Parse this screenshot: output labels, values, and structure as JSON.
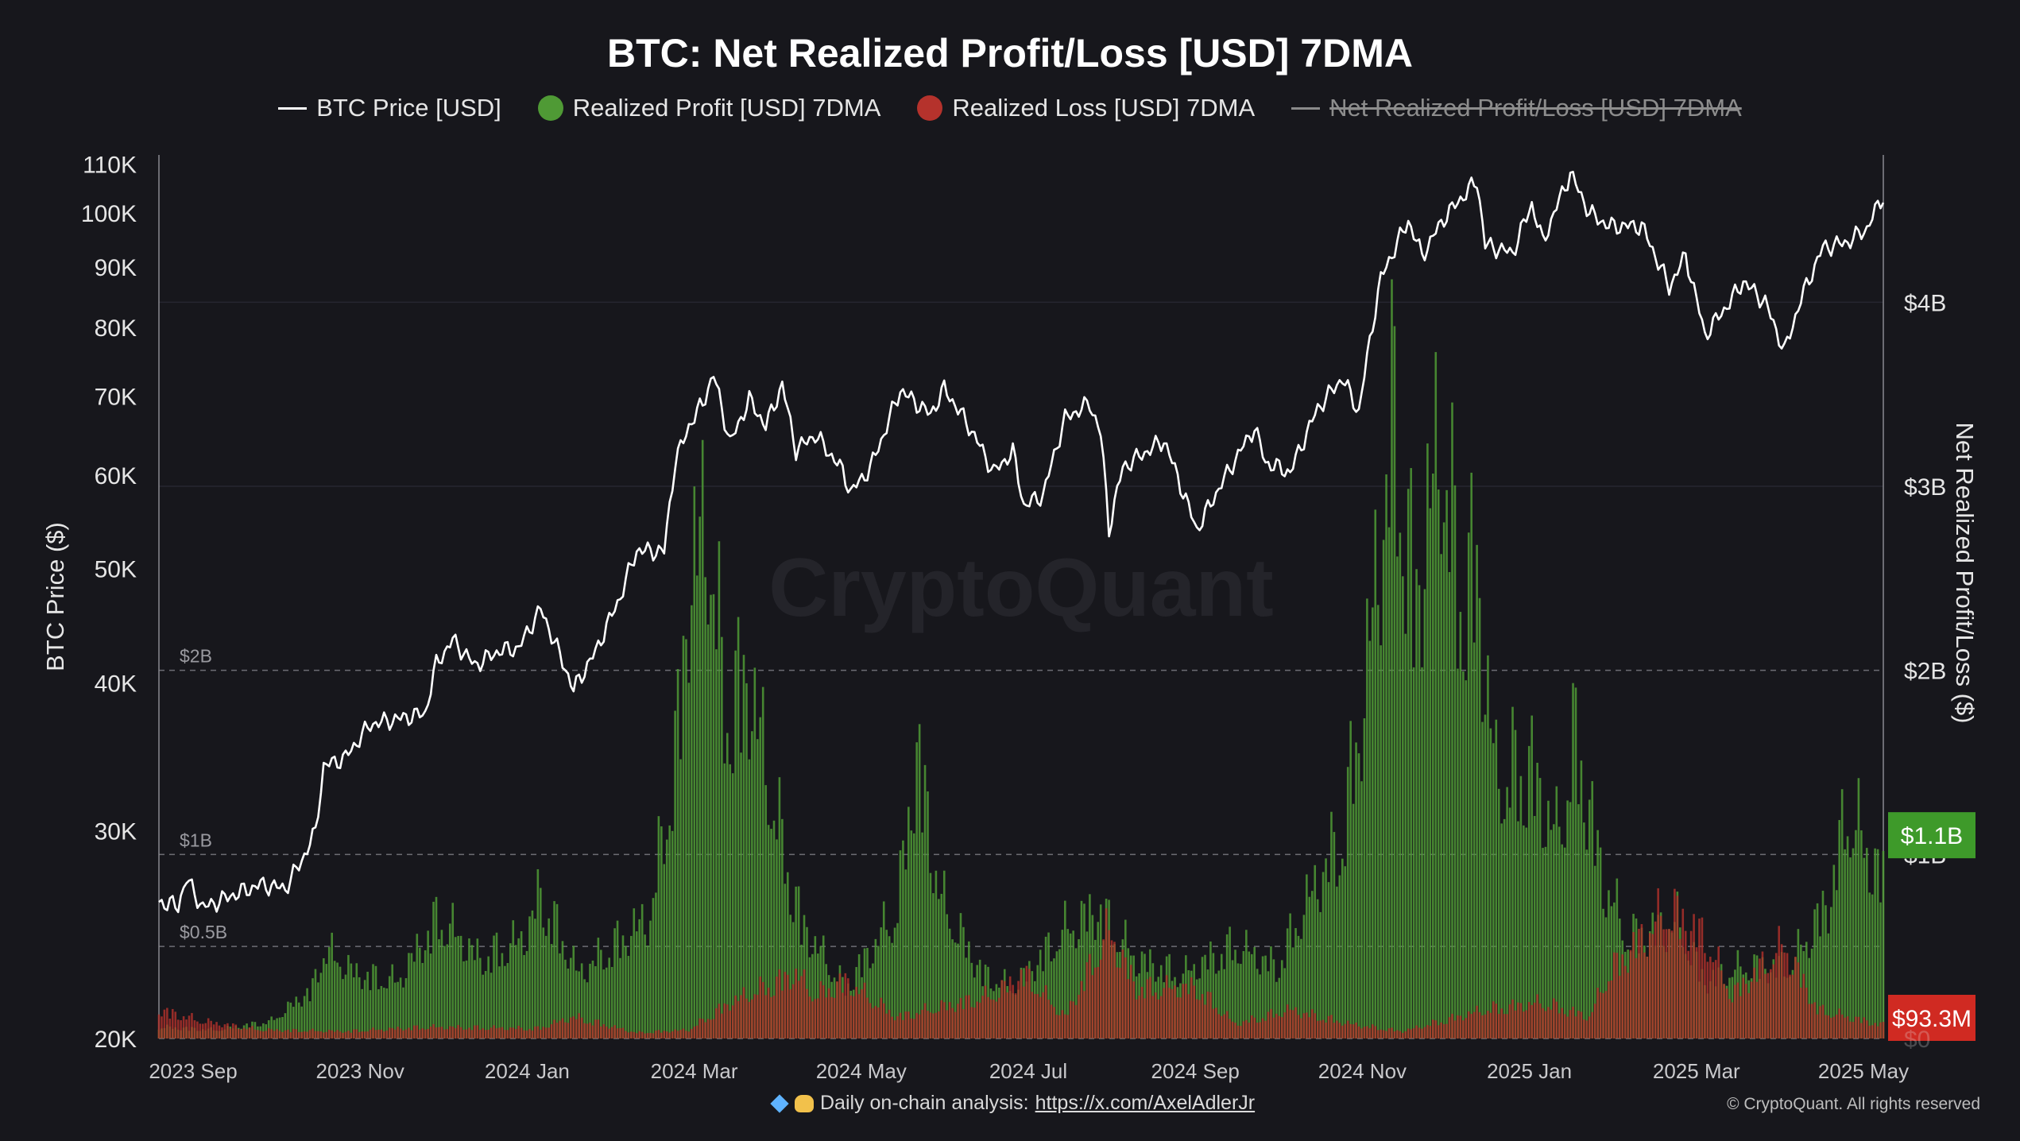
{
  "title": "BTC: Net Realized Profit/Loss [USD] 7DMA",
  "legend": [
    {
      "label": "BTC Price [USD]",
      "marker": "line",
      "color": "#ffffff",
      "struck": false
    },
    {
      "label": "Realized Profit [USD] 7DMA",
      "marker": "dot",
      "color": "#4f9a35",
      "struck": false
    },
    {
      "label": "Realized Loss [USD] 7DMA",
      "marker": "dot",
      "color": "#b5322c",
      "struck": false
    },
    {
      "label": "Net Realized Profit/Loss [USD] 7DMA",
      "marker": "line",
      "color": "#8a8a8a",
      "struck": true
    }
  ],
  "watermark": "CryptoQuant",
  "footer": {
    "emoji": [
      "diamond-icon",
      "raised-hands-icon"
    ],
    "text": "Daily on-chain analysis:",
    "link": "https://x.com/AxelAdlerJr",
    "copyright": "© CryptoQuant. All rights reserved"
  },
  "chart_data": {
    "type": "bar",
    "xlabel": "",
    "x_ticks": [
      "2023 Sep",
      "2023 Nov",
      "2024 Jan",
      "2024 Mar",
      "2024 May",
      "2024 Jul",
      "2024 Sep",
      "2024 Nov",
      "2025 Jan",
      "2025 Mar",
      "2025 May"
    ],
    "x_range": [
      "2023-08-25",
      "2025-05-14"
    ],
    "left_axis": {
      "label": "BTC Price ($)",
      "scale": "log",
      "range": [
        20000,
        112000
      ],
      "ticks": [
        20000,
        30000,
        40000,
        50000,
        60000,
        70000,
        80000,
        90000,
        100000,
        110000
      ],
      "tick_labels": [
        "20K",
        "30K",
        "40K",
        "50K",
        "60K",
        "70K",
        "80K",
        "90K",
        "100K",
        "110K"
      ]
    },
    "right_axis": {
      "label": "Net Realized Profit/Loss ($)",
      "range": [
        0,
        4.8
      ],
      "unit": "B USD",
      "ticks": [
        0,
        1,
        2,
        3,
        4
      ],
      "tick_labels": [
        "$0",
        "$1B",
        "$2B",
        "$3B",
        "$4B"
      ],
      "inner_labels": [
        {
          "value": 2,
          "label": "$2B"
        },
        {
          "value": 1,
          "label": "$1B"
        },
        {
          "value": 0.5,
          "label": "$0.5B"
        }
      ]
    },
    "grid": {
      "horizontal": true,
      "dashed_levels": [
        0,
        0.5,
        1,
        2
      ],
      "solid_levels": [
        3,
        4
      ]
    },
    "current_labels": [
      {
        "series": "Realized Profit [USD] 7DMA",
        "text": "$1.1B",
        "value": 1.1,
        "color": "#3e9a2a"
      },
      {
        "series": "Realized Loss [USD] 7DMA",
        "text": "$93.3M",
        "value": 0.0933,
        "color": "#d02a22"
      }
    ],
    "series": [
      {
        "name": "BTC Price [USD]",
        "axis": "left",
        "kind": "line",
        "color": "#ffffff",
        "points": [
          [
            "2023-08-25",
            26100
          ],
          [
            "2023-09-01",
            25900
          ],
          [
            "2023-09-04",
            27300
          ],
          [
            "2023-09-10",
            25800
          ],
          [
            "2023-09-20",
            26400
          ],
          [
            "2023-10-01",
            27000
          ],
          [
            "2023-10-10",
            26800
          ],
          [
            "2023-10-16",
            28300
          ],
          [
            "2023-10-21",
            29900
          ],
          [
            "2023-10-24",
            34000
          ],
          [
            "2023-11-01",
            34600
          ],
          [
            "2023-11-10",
            36900
          ],
          [
            "2023-11-20",
            37300
          ],
          [
            "2023-11-30",
            37700
          ],
          [
            "2023-12-04",
            41500
          ],
          [
            "2023-12-10",
            43500
          ],
          [
            "2023-12-18",
            41400
          ],
          [
            "2023-12-27",
            42600
          ],
          [
            "2024-01-03",
            42800
          ],
          [
            "2024-01-11",
            46200
          ],
          [
            "2024-01-17",
            42800
          ],
          [
            "2024-01-23",
            39500
          ],
          [
            "2024-01-31",
            42500
          ],
          [
            "2024-02-09",
            47300
          ],
          [
            "2024-02-15",
            51800
          ],
          [
            "2024-02-25",
            51700
          ],
          [
            "2024-02-29",
            61500
          ],
          [
            "2024-03-05",
            66000
          ],
          [
            "2024-03-10",
            69000
          ],
          [
            "2024-03-14",
            73000
          ],
          [
            "2024-03-20",
            63800
          ],
          [
            "2024-03-27",
            69500
          ],
          [
            "2024-04-02",
            66000
          ],
          [
            "2024-04-08",
            71500
          ],
          [
            "2024-04-13",
            63000
          ],
          [
            "2024-04-20",
            64900
          ],
          [
            "2024-04-30",
            60500
          ],
          [
            "2024-05-03",
            58000
          ],
          [
            "2024-05-10",
            60800
          ],
          [
            "2024-05-15",
            65000
          ],
          [
            "2024-05-21",
            70800
          ],
          [
            "2024-06-01",
            67500
          ],
          [
            "2024-06-06",
            71000
          ],
          [
            "2024-06-15",
            66000
          ],
          [
            "2024-06-24",
            60300
          ],
          [
            "2024-07-01",
            62800
          ],
          [
            "2024-07-05",
            56500
          ],
          [
            "2024-07-12",
            57700
          ],
          [
            "2024-07-20",
            67000
          ],
          [
            "2024-07-29",
            69000
          ],
          [
            "2024-08-02",
            65000
          ],
          [
            "2024-08-05",
            54000
          ],
          [
            "2024-08-10",
            60900
          ],
          [
            "2024-08-25",
            64200
          ],
          [
            "2024-09-01",
            58000
          ],
          [
            "2024-09-06",
            53900
          ],
          [
            "2024-09-15",
            59000
          ],
          [
            "2024-09-27",
            65800
          ],
          [
            "2024-10-01",
            61500
          ],
          [
            "2024-10-10",
            60300
          ],
          [
            "2024-10-20",
            68300
          ],
          [
            "2024-10-29",
            72500
          ],
          [
            "2024-11-04",
            67800
          ],
          [
            "2024-11-12",
            88000
          ],
          [
            "2024-11-22",
            98500
          ],
          [
            "2024-11-27",
            92000
          ],
          [
            "2024-12-05",
            99000
          ],
          [
            "2024-12-17",
            106500
          ],
          [
            "2024-12-20",
            94000
          ],
          [
            "2024-12-30",
            92500
          ],
          [
            "2025-01-06",
            101800
          ],
          [
            "2025-01-10",
            94400
          ],
          [
            "2025-01-20",
            108000
          ],
          [
            "2025-01-27",
            100000
          ],
          [
            "2025-02-03",
            97500
          ],
          [
            "2025-02-15",
            97500
          ],
          [
            "2025-02-25",
            86500
          ],
          [
            "2025-03-03",
            92000
          ],
          [
            "2025-03-10",
            78800
          ],
          [
            "2025-03-19",
            84000
          ],
          [
            "2025-03-24",
            87500
          ],
          [
            "2025-04-01",
            84000
          ],
          [
            "2025-04-08",
            76300
          ],
          [
            "2025-04-14",
            84500
          ],
          [
            "2025-04-22",
            93500
          ],
          [
            "2025-05-01",
            94500
          ],
          [
            "2025-05-08",
            97000
          ],
          [
            "2025-05-14",
            103500
          ]
        ]
      },
      {
        "name": "Realized Profit [USD] 7DMA",
        "axis": "right",
        "kind": "bar",
        "color": "#4f9a35",
        "unit": "B USD",
        "points": [
          [
            "2023-08-25",
            0.08
          ],
          [
            "2023-09-15",
            0.06
          ],
          [
            "2023-10-05",
            0.12
          ],
          [
            "2023-10-20",
            0.35
          ],
          [
            "2023-10-24",
            0.62
          ],
          [
            "2023-11-05",
            0.45
          ],
          [
            "2023-11-20",
            0.4
          ],
          [
            "2023-12-05",
            0.85
          ],
          [
            "2023-12-20",
            0.55
          ],
          [
            "2024-01-05",
            0.7
          ],
          [
            "2024-01-11",
            1.0
          ],
          [
            "2024-01-25",
            0.45
          ],
          [
            "2024-02-10",
            0.7
          ],
          [
            "2024-02-20",
            0.85
          ],
          [
            "2024-03-01",
            2.1
          ],
          [
            "2024-03-05",
            3.2
          ],
          [
            "2024-03-12",
            3.6
          ],
          [
            "2024-03-18",
            2.3
          ],
          [
            "2024-03-27",
            2.5
          ],
          [
            "2024-04-05",
            1.6
          ],
          [
            "2024-04-15",
            0.8
          ],
          [
            "2024-05-01",
            0.35
          ],
          [
            "2024-05-20",
            0.9
          ],
          [
            "2024-05-27",
            2.0
          ],
          [
            "2024-06-05",
            0.95
          ],
          [
            "2024-06-20",
            0.45
          ],
          [
            "2024-07-01",
            0.35
          ],
          [
            "2024-07-20",
            0.75
          ],
          [
            "2024-08-01",
            0.9
          ],
          [
            "2024-08-15",
            0.55
          ],
          [
            "2024-09-01",
            0.45
          ],
          [
            "2024-09-20",
            0.65
          ],
          [
            "2024-10-05",
            0.5
          ],
          [
            "2024-10-20",
            1.1
          ],
          [
            "2024-10-29",
            1.4
          ],
          [
            "2024-11-06",
            2.4
          ],
          [
            "2024-11-12",
            3.5
          ],
          [
            "2024-11-17",
            4.4
          ],
          [
            "2024-11-24",
            3.0
          ],
          [
            "2024-12-04",
            4.2
          ],
          [
            "2024-12-10",
            3.2
          ],
          [
            "2024-12-17",
            3.2
          ],
          [
            "2024-12-24",
            1.8
          ],
          [
            "2025-01-05",
            1.9
          ],
          [
            "2025-01-15",
            1.4
          ],
          [
            "2025-01-22",
            2.1
          ],
          [
            "2025-02-01",
            1.1
          ],
          [
            "2025-02-10",
            0.7
          ],
          [
            "2025-02-28",
            0.8
          ],
          [
            "2025-03-10",
            0.4
          ],
          [
            "2025-03-25",
            0.5
          ],
          [
            "2025-04-10",
            0.5
          ],
          [
            "2025-04-24",
            0.95
          ],
          [
            "2025-05-01",
            1.6
          ],
          [
            "2025-05-08",
            1.3
          ],
          [
            "2025-05-14",
            1.1
          ]
        ]
      },
      {
        "name": "Realized Loss [USD] 7DMA",
        "axis": "right",
        "kind": "bar",
        "color": "#b5322c",
        "unit": "B USD",
        "points": [
          [
            "2023-08-25",
            0.2
          ],
          [
            "2023-09-10",
            0.12
          ],
          [
            "2023-10-01",
            0.06
          ],
          [
            "2023-11-01",
            0.05
          ],
          [
            "2023-12-01",
            0.08
          ],
          [
            "2024-01-10",
            0.07
          ],
          [
            "2024-01-23",
            0.15
          ],
          [
            "2024-02-15",
            0.04
          ],
          [
            "2024-03-05",
            0.06
          ],
          [
            "2024-03-20",
            0.25
          ],
          [
            "2024-04-13",
            0.45
          ],
          [
            "2024-04-20",
            0.3
          ],
          [
            "2024-05-01",
            0.4
          ],
          [
            "2024-05-20",
            0.15
          ],
          [
            "2024-06-24",
            0.3
          ],
          [
            "2024-07-05",
            0.45
          ],
          [
            "2024-07-20",
            0.15
          ],
          [
            "2024-08-05",
            0.75
          ],
          [
            "2024-08-15",
            0.35
          ],
          [
            "2024-09-06",
            0.35
          ],
          [
            "2024-09-20",
            0.1
          ],
          [
            "2024-10-10",
            0.2
          ],
          [
            "2024-11-01",
            0.1
          ],
          [
            "2024-11-20",
            0.05
          ],
          [
            "2024-12-20",
            0.2
          ],
          [
            "2025-01-10",
            0.25
          ],
          [
            "2025-01-27",
            0.15
          ],
          [
            "2025-02-03",
            0.45
          ],
          [
            "2025-02-25",
            0.9
          ],
          [
            "2025-03-10",
            0.7
          ],
          [
            "2025-03-20",
            0.3
          ],
          [
            "2025-04-08",
            0.65
          ],
          [
            "2025-04-20",
            0.2
          ],
          [
            "2025-05-14",
            0.0933
          ]
        ]
      }
    ]
  }
}
